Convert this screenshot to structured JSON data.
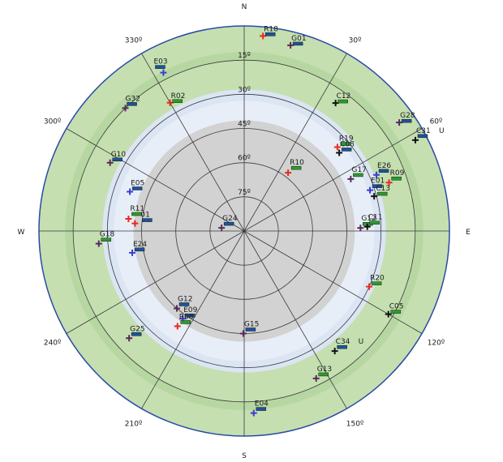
{
  "skyplot": {
    "cardinals": {
      "north": "N",
      "east": "E",
      "south": "S",
      "west": "W"
    },
    "azimuth_labels": [
      {
        "az": 30,
        "text": "30º"
      },
      {
        "az": 60,
        "text": "60º"
      },
      {
        "az": 120,
        "text": "120º"
      },
      {
        "az": 150,
        "text": "150º"
      },
      {
        "az": 210,
        "text": "210º"
      },
      {
        "az": 240,
        "text": "240º"
      },
      {
        "az": 300,
        "text": "300º"
      },
      {
        "az": 330,
        "text": "330º"
      }
    ],
    "elevation_labels": [
      {
        "el": 15,
        "text": "15º"
      },
      {
        "el": 30,
        "text": "30º"
      },
      {
        "el": 45,
        "text": "45º"
      },
      {
        "el": 60,
        "text": "60º"
      },
      {
        "el": 75,
        "text": "75º"
      }
    ],
    "colors": {
      "outer_band": "#c5dfb0",
      "outer_band_edge": "#a9cf93",
      "mid_band": "#dbe5f3",
      "inner_disk": "#d2d2d2",
      "border": "#2a4aa8",
      "gps": "#5a2a5a",
      "galileo": "#3c3cd6",
      "glonass": "#e82a1a",
      "beidou": "#111111",
      "bar_green": "#2e9a2e",
      "bar_blue": "#1f4f9f"
    },
    "satellites": [
      {
        "id": "R18",
        "az": 5.5,
        "el": 4,
        "system": "glonass",
        "label_dx": 1,
        "label_dy": -6,
        "bar": "blue"
      },
      {
        "id": "G01",
        "az": 14,
        "el": 6,
        "system": "gps",
        "label_dx": 1,
        "label_dy": -6,
        "bar": "blue"
      },
      {
        "id": "E03",
        "az": 333,
        "el": 12,
        "system": "galileo",
        "label_dx": -12,
        "label_dy": -11,
        "bar": "blue"
      },
      {
        "id": "R02",
        "az": 330,
        "el": 25,
        "system": "glonass",
        "label_dx": 1,
        "label_dy": -6,
        "bar": "green"
      },
      {
        "id": "G32",
        "az": 316,
        "el": 15,
        "system": "gps",
        "label_dx": 0,
        "label_dy": -9,
        "bar": "blue"
      },
      {
        "id": "C12",
        "az": 35.5,
        "el": 21,
        "system": "beidou",
        "label_dx": 1,
        "label_dy": -6,
        "bar": "green"
      },
      {
        "id": "G28",
        "az": 55,
        "el": 7,
        "system": "gps",
        "label_dx": 1,
        "label_dy": -6,
        "bar": "blue"
      },
      {
        "id": "C31",
        "az": 62,
        "el": 5,
        "system": "beidou",
        "label_dx": 1,
        "label_dy": -9,
        "bar": "blue",
        "suffix": "U"
      },
      {
        "id": "R19",
        "az": 48,
        "el": 35,
        "system": "glonass",
        "label_dx": 2,
        "label_dy": -8,
        "bar": "green"
      },
      {
        "id": "C08",
        "az": 50.5,
        "el": 36,
        "system": "beidou",
        "label_dx": 1,
        "label_dy": -8,
        "bar": "blue"
      },
      {
        "id": "G10",
        "az": 297,
        "el": 24,
        "system": "gps",
        "label_dx": 1,
        "label_dy": -8,
        "bar": "blue"
      },
      {
        "id": "E05",
        "az": 289,
        "el": 37,
        "system": "galileo",
        "label_dx": 1,
        "label_dy": -8,
        "bar": "blue"
      },
      {
        "id": "G17",
        "az": 64,
        "el": 38,
        "system": "gps",
        "label_dx": 1,
        "label_dy": -9,
        "bar": "green"
      },
      {
        "id": "E26",
        "az": 67,
        "el": 27,
        "system": "galileo",
        "label_dx": 1,
        "label_dy": -9,
        "bar": "blue"
      },
      {
        "id": "R10",
        "az": 37,
        "el": 58,
        "system": "glonass",
        "label_dx": 2,
        "label_dy": -10,
        "bar": "green"
      },
      {
        "id": "E01",
        "az": 72,
        "el": 32,
        "system": "galileo",
        "label_dx": 1,
        "label_dy": -9,
        "bar": "blue"
      },
      {
        "id": "R09",
        "az": 71.5,
        "el": 23,
        "system": "glonass",
        "label_dx": 1,
        "label_dy": -9,
        "bar": "green"
      },
      {
        "id": "C13",
        "az": 75,
        "el": 31,
        "system": "beidou",
        "label_dx": 2,
        "label_dy": -7,
        "bar": "green"
      },
      {
        "id": "R11",
        "az": 276,
        "el": 39,
        "system": "glonass",
        "label_dx": 2,
        "label_dy": -10,
        "bar": "green"
      },
      {
        "id": "C01",
        "az": 274,
        "el": 42,
        "system": "glonass",
        "label_dx": 7,
        "label_dy": -8,
        "bar": "blue",
        "label_override": "01"
      },
      {
        "id": "G24",
        "az": 278,
        "el": 80,
        "system": "gps",
        "label_dx": 1,
        "label_dy": -9,
        "bar": "blue"
      },
      {
        "id": "G12",
        "az": 88.5,
        "el": 39,
        "system": "gps",
        "label_dx": 1,
        "label_dy": -9,
        "bar": "green"
      },
      {
        "id": "C11",
        "az": 88,
        "el": 36,
        "system": "beidou",
        "label_dx": 1,
        "label_dy": -9,
        "bar": "green"
      },
      {
        "id": "G18",
        "az": 265,
        "el": 26,
        "system": "gps",
        "label_dx": 1,
        "label_dy": -9,
        "bar": "green"
      },
      {
        "id": "E24",
        "az": 259,
        "el": 40,
        "system": "galileo",
        "label_dx": 1,
        "label_dy": -8,
        "bar": "blue"
      },
      {
        "id": "R20",
        "az": 114,
        "el": 30,
        "system": "glonass",
        "label_dx": 1,
        "label_dy": -8,
        "bar": "green"
      },
      {
        "id": "C05",
        "az": 120,
        "el": 17,
        "system": "beidou",
        "label_dx": 1,
        "label_dy": -7,
        "bar": "green"
      },
      {
        "id": "G12",
        "az": 221,
        "el": 45,
        "system": "gps",
        "label_dx": 1,
        "label_dy": -9,
        "bar": "blue"
      },
      {
        "id": "E09",
        "az": 215,
        "el": 43,
        "system": "galileo",
        "label_dx": 1,
        "label_dy": -8,
        "bar": "blue"
      },
      {
        "id": "R08",
        "az": 215,
        "el": 39,
        "system": "glonass",
        "label_dx": 2,
        "label_dy": -9,
        "bar": "green"
      },
      {
        "id": "G25",
        "az": 227,
        "el": 21,
        "system": "gps",
        "label_dx": 1,
        "label_dy": -9,
        "bar": "blue"
      },
      {
        "id": "G15",
        "az": 180.5,
        "el": 45,
        "system": "gps",
        "label_dx": 1,
        "label_dy": -9,
        "bar": "blue"
      },
      {
        "id": "C34",
        "az": 143,
        "el": 24,
        "system": "beidou",
        "label_dx": 1,
        "label_dy": -9,
        "bar": "blue",
        "suffix": "U"
      },
      {
        "id": "G13",
        "az": 154,
        "el": 18,
        "system": "gps",
        "label_dx": 1,
        "label_dy": -9,
        "bar": "green"
      },
      {
        "id": "E04",
        "az": 177,
        "el": 10,
        "system": "galileo",
        "label_dx": 1,
        "label_dy": -9,
        "bar": "blue"
      }
    ]
  }
}
